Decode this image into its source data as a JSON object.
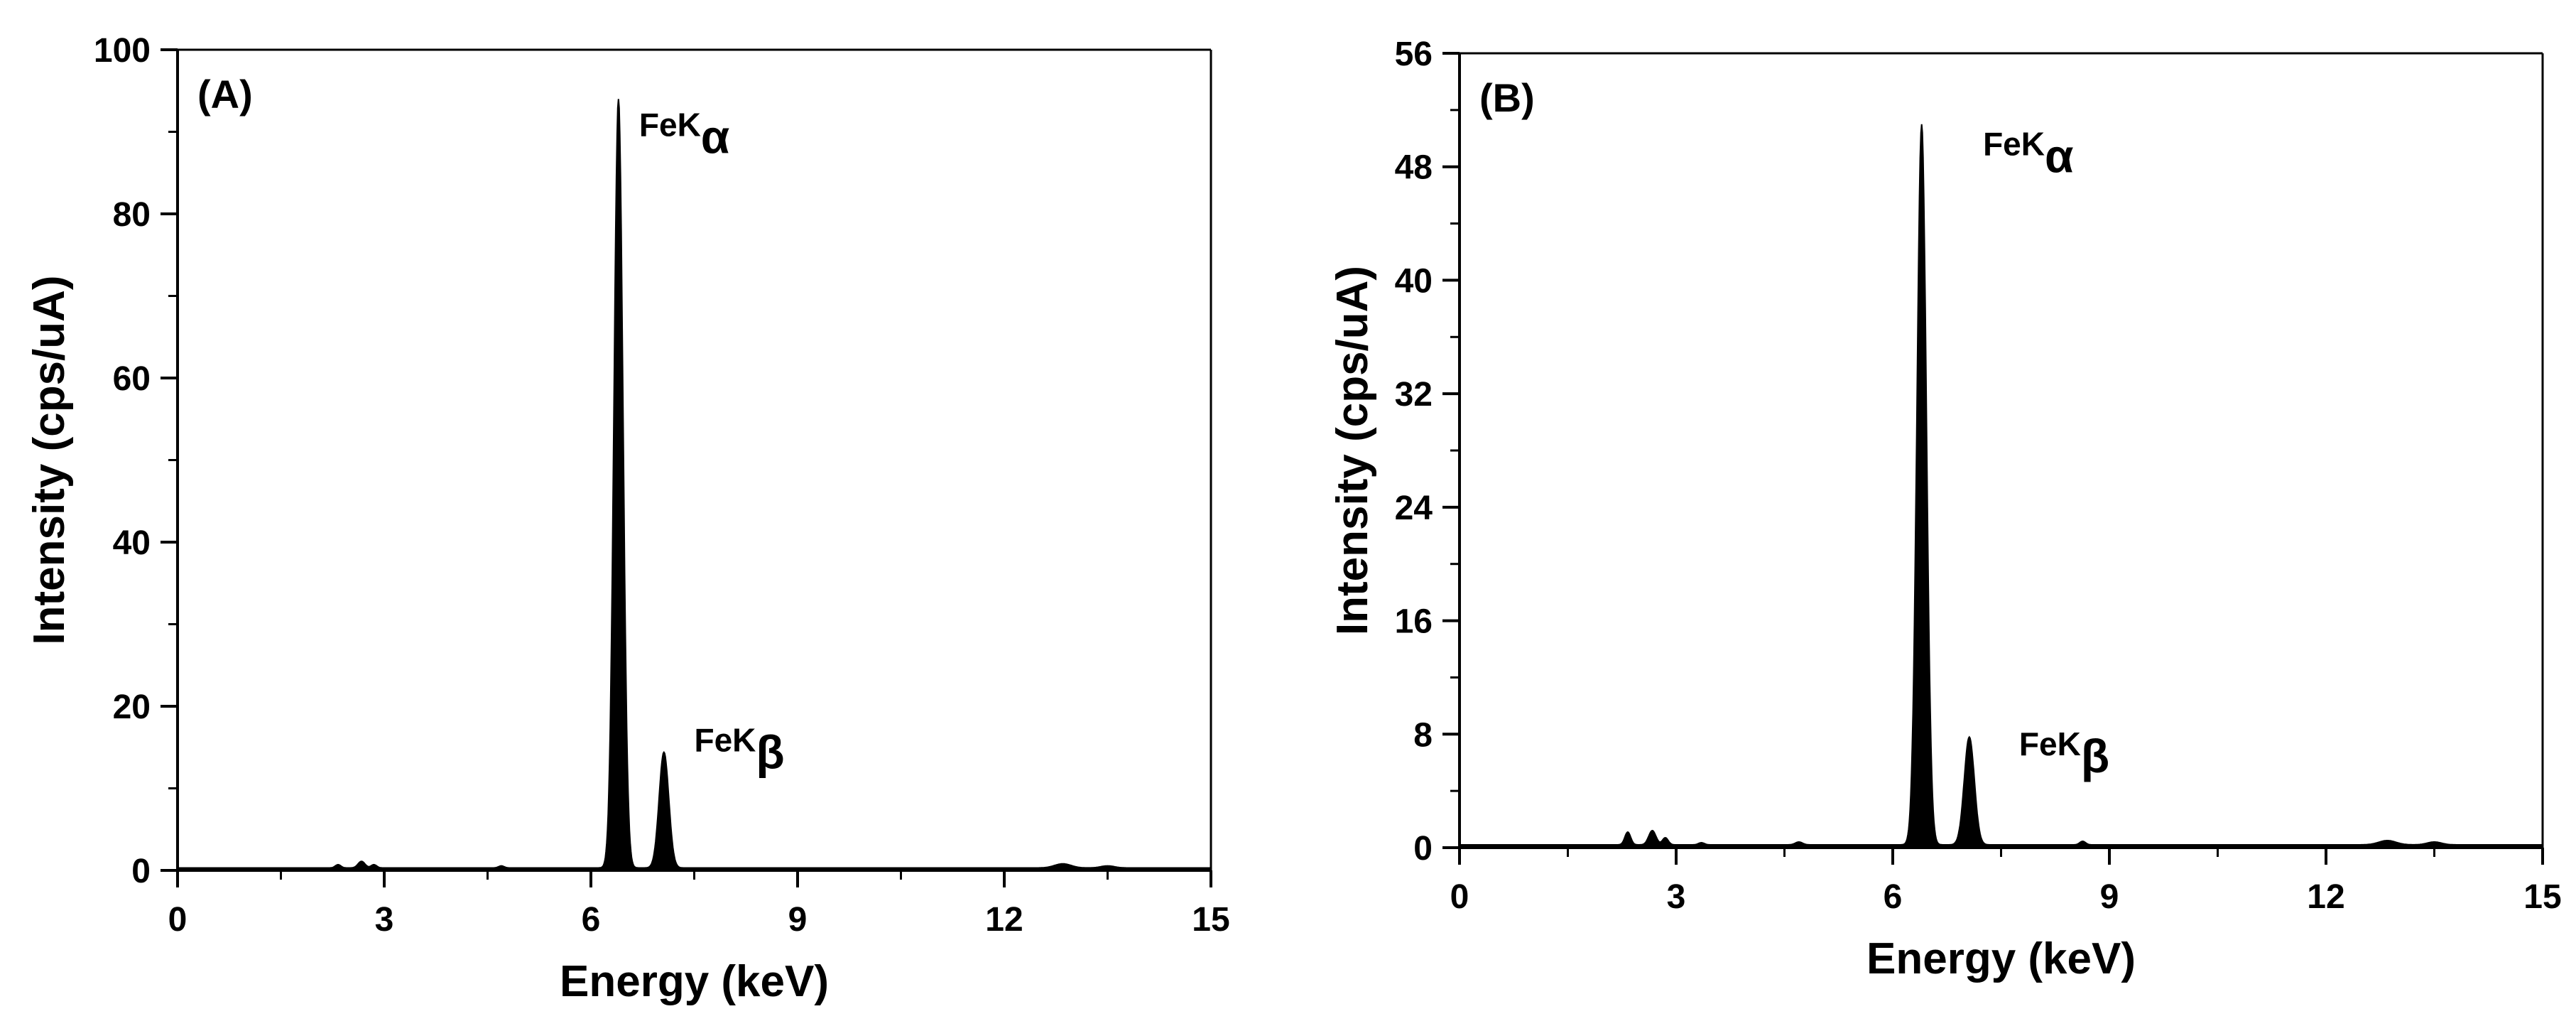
{
  "chart_data": [
    {
      "type": "area",
      "panel_label": "(A)",
      "xlabel": "Energy (keV)",
      "ylabel": "Intensity (cps/uA)",
      "xlim": [
        0,
        15
      ],
      "ylim": [
        0,
        100
      ],
      "xticks": [
        0,
        3,
        6,
        9,
        12,
        15
      ],
      "yticks": [
        0,
        20,
        40,
        60,
        80,
        100
      ],
      "grid": false,
      "baseline": 0.3,
      "peaks": [
        {
          "center": 2.33,
          "height": 0.4,
          "width": 0.04
        },
        {
          "center": 2.67,
          "height": 0.8,
          "width": 0.05
        },
        {
          "center": 2.85,
          "height": 0.4,
          "width": 0.04
        },
        {
          "center": 4.7,
          "height": 0.25,
          "width": 0.04
        },
        {
          "center": 6.4,
          "height": 93.7,
          "width": 0.065
        },
        {
          "center": 7.06,
          "height": 14.1,
          "width": 0.07
        },
        {
          "center": 12.85,
          "height": 0.5,
          "width": 0.12
        },
        {
          "center": 13.5,
          "height": 0.25,
          "width": 0.1
        }
      ],
      "annotations": [
        {
          "main": "FeK",
          "sub": "α",
          "x": 6.7,
          "y": 89.5
        },
        {
          "main": "FeK",
          "sub": "β",
          "x": 7.5,
          "y": 14.5
        }
      ]
    },
    {
      "type": "area",
      "panel_label": "(B)",
      "xlabel": "Energy (keV)",
      "ylabel": "Intensity (cps/uA)",
      "xlim": [
        0,
        15
      ],
      "ylim": [
        0,
        56
      ],
      "xticks": [
        0,
        3,
        6,
        9,
        12,
        15
      ],
      "yticks": [
        0,
        8,
        16,
        24,
        32,
        40,
        48,
        56
      ],
      "grid": false,
      "baseline": 0.2,
      "peaks": [
        {
          "center": 2.33,
          "height": 0.9,
          "width": 0.04
        },
        {
          "center": 2.67,
          "height": 1.0,
          "width": 0.05
        },
        {
          "center": 2.85,
          "height": 0.5,
          "width": 0.04
        },
        {
          "center": 3.35,
          "height": 0.15,
          "width": 0.04
        },
        {
          "center": 4.7,
          "height": 0.2,
          "width": 0.05
        },
        {
          "center": 6.4,
          "height": 50.8,
          "width": 0.065
        },
        {
          "center": 7.06,
          "height": 7.6,
          "width": 0.07
        },
        {
          "center": 8.63,
          "height": 0.25,
          "width": 0.04
        },
        {
          "center": 12.85,
          "height": 0.3,
          "width": 0.12
        },
        {
          "center": 13.5,
          "height": 0.2,
          "width": 0.1
        }
      ],
      "annotations": [
        {
          "main": "FeK",
          "sub": "α",
          "x": 7.25,
          "y": 48.8
        },
        {
          "main": "FeK",
          "sub": "β",
          "x": 7.75,
          "y": 6.5
        }
      ]
    }
  ]
}
